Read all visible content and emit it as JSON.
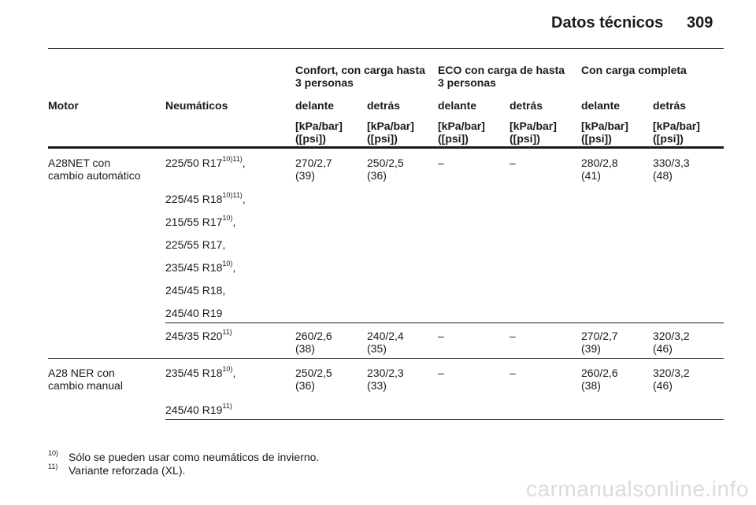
{
  "header": {
    "title": "Datos técnicos",
    "page_number": "309"
  },
  "table": {
    "group_headers": {
      "confort": [
        "Confort, con carga hasta",
        "3 personas"
      ],
      "eco": [
        "ECO con carga de hasta",
        "3 personas"
      ],
      "completa": "Con carga completa"
    },
    "col_headers": {
      "motor": "Motor",
      "neumaticos": "Neumáticos",
      "front": "delante",
      "rear": "detrás"
    },
    "unit": [
      "[kPa/bar]",
      "([psi])"
    ],
    "rows": {
      "a28net": {
        "motor": [
          "A28NET con",
          "cambio automático"
        ],
        "tires": [
          {
            "text": "225/50 R17",
            "sup": "10)11)",
            "suffix": ","
          },
          {
            "text": "225/45 R18",
            "sup": "10)11)",
            "suffix": ","
          },
          {
            "text": "215/55 R17",
            "sup": "10)",
            "suffix": ","
          },
          {
            "text": "225/55 R17",
            "sup": "",
            "suffix": ","
          },
          {
            "text": "235/45 R18",
            "sup": "10)",
            "suffix": ","
          },
          {
            "text": "245/45 R18",
            "sup": "",
            "suffix": ","
          },
          {
            "text": "245/40 R19",
            "sup": "",
            "suffix": ""
          }
        ],
        "values": [
          [
            "270/2,7",
            "(39)"
          ],
          [
            "250/2,5",
            "(36)"
          ],
          [
            "–",
            ""
          ],
          [
            "–",
            ""
          ],
          [
            "280/2,8",
            "(41)"
          ],
          [
            "330/3,3",
            "(48)"
          ]
        ]
      },
      "r20": {
        "tire": {
          "text": "245/35 R20",
          "sup": "11)",
          "suffix": ""
        },
        "values": [
          [
            "260/2,6",
            "(38)"
          ],
          [
            "240/2,4",
            "(35)"
          ],
          [
            "–",
            ""
          ],
          [
            "–",
            ""
          ],
          [
            "270/2,7",
            "(39)"
          ],
          [
            "320/3,2",
            "(46)"
          ]
        ]
      },
      "a28ner": {
        "motor": [
          "A28 NER con",
          "cambio manual"
        ],
        "tires": [
          {
            "text": "235/45 R18",
            "sup": "10)",
            "suffix": ","
          },
          {
            "text": "245/40 R19",
            "sup": "11)",
            "suffix": ""
          }
        ],
        "values": [
          [
            "250/2,5",
            "(36)"
          ],
          [
            "230/2,3",
            "(33)"
          ],
          [
            "–",
            ""
          ],
          [
            "–",
            ""
          ],
          [
            "260/2,6",
            "(38)"
          ],
          [
            "320/3,2",
            "(46)"
          ]
        ]
      }
    }
  },
  "footnotes": [
    {
      "num": "10)",
      "text": "Sólo se pueden usar como neumáticos de invierno."
    },
    {
      "num": "11)",
      "text": "Variante reforzada (XL)."
    }
  ],
  "watermark": "carmanualsonline.info"
}
